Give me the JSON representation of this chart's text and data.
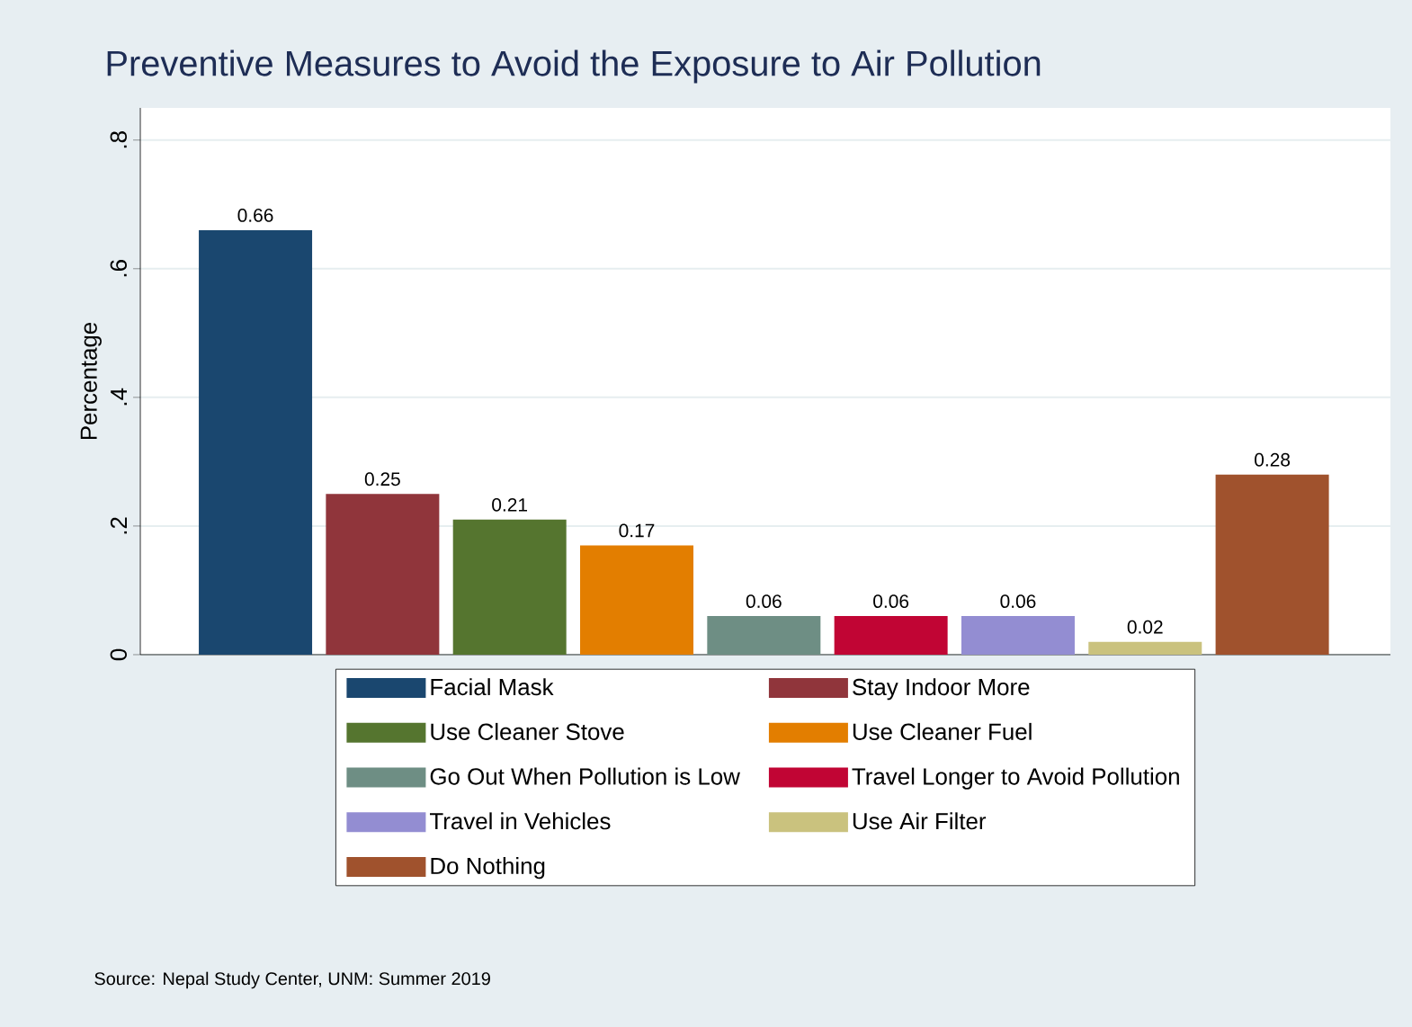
{
  "chart_data": {
    "type": "bar",
    "title": "Preventive Measures to Avoid the Exposure to Air Pollution",
    "ylabel": "Percentage",
    "categories": [
      null,
      null,
      null,
      null,
      null,
      null,
      null,
      null,
      null
    ],
    "series": [
      {
        "name": "Facial Mask",
        "color": "#1a476f",
        "values": [
          0.66,
          null,
          null,
          null,
          null,
          null,
          null,
          null,
          null
        ]
      },
      {
        "name": "Stay Indoor More",
        "color": "#90353b",
        "values": [
          null,
          0.25,
          null,
          null,
          null,
          null,
          null,
          null,
          null
        ]
      },
      {
        "name": "Use Cleaner Stove",
        "color": "#55752f",
        "values": [
          null,
          null,
          0.21,
          null,
          null,
          null,
          null,
          null,
          null
        ]
      },
      {
        "name": "Use Cleaner Fuel",
        "color": "#e37e00",
        "values": [
          null,
          null,
          null,
          0.17,
          null,
          null,
          null,
          null,
          null
        ]
      },
      {
        "name": "Go Out When Pollution is Low",
        "color": "#6e8e84",
        "values": [
          null,
          null,
          null,
          null,
          0.06,
          null,
          null,
          null,
          null
        ]
      },
      {
        "name": "Travel Longer to Avoid Pollution",
        "color": "#c10534",
        "values": [
          null,
          null,
          null,
          null,
          null,
          0.06,
          null,
          null,
          null
        ]
      },
      {
        "name": "Travel in Vehicles",
        "color": "#938dd2",
        "values": [
          null,
          null,
          null,
          null,
          null,
          null,
          0.06,
          null,
          null
        ]
      },
      {
        "name": "Use Air Filter",
        "color": "#cac27e",
        "values": [
          null,
          null,
          null,
          null,
          null,
          null,
          null,
          0.02,
          null
        ]
      },
      {
        "name": "Do Nothing",
        "color": "#a0522d",
        "values": [
          null,
          null,
          null,
          null,
          null,
          null,
          null,
          null,
          0.28
        ]
      }
    ],
    "ylim": [
      0,
      0.85
    ],
    "yticks": [
      0,
      {
        "value": 0.2,
        "label": ".2"
      },
      {
        "value": 0.4,
        "label": ".4"
      },
      {
        "value": 0.6,
        "label": ".6"
      },
      {
        "value": 0.8,
        "label": ".8"
      }
    ],
    "grid": "y",
    "legend": "bottom",
    "data_labels": true,
    "annotations": [
      "Source: Nepal Study Center, UNM: Summer 2019"
    ]
  }
}
